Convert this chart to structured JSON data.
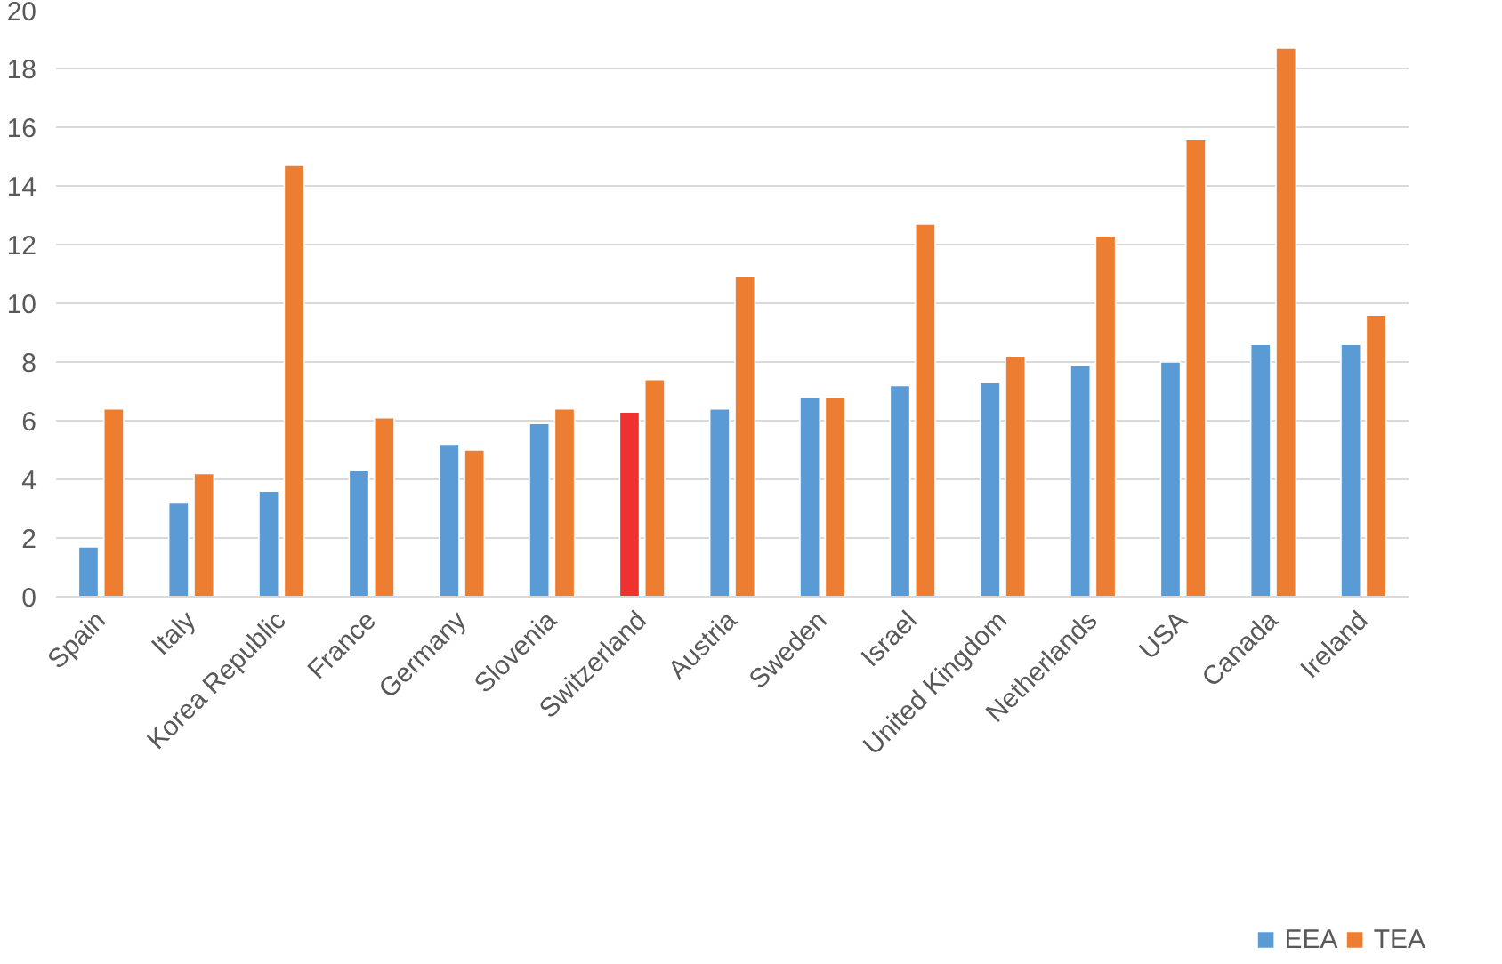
{
  "chart_data": {
    "type": "bar",
    "categories": [
      "Spain",
      "Italy",
      "Korea Republic",
      "France",
      "Germany",
      "Slovenia",
      "Switzerland",
      "Austria",
      "Sweden",
      "Israel",
      "United Kingdom",
      "Netherlands",
      "USA",
      "Canada",
      "Ireland"
    ],
    "series": [
      {
        "name": "EEA",
        "color": "#5b9bd5",
        "colors": [
          "#5b9bd5",
          "#5b9bd5",
          "#5b9bd5",
          "#5b9bd5",
          "#5b9bd5",
          "#5b9bd5",
          "#ee3131",
          "#5b9bd5",
          "#5b9bd5",
          "#5b9bd5",
          "#5b9bd5",
          "#5b9bd5",
          "#5b9bd5",
          "#5b9bd5",
          "#5b9bd5"
        ],
        "values": [
          1.7,
          3.2,
          3.6,
          4.3,
          5.2,
          5.9,
          6.3,
          6.4,
          6.8,
          7.2,
          7.3,
          7.9,
          8.0,
          8.6,
          8.6
        ]
      },
      {
        "name": "TEA",
        "color": "#ed7d31",
        "values": [
          6.4,
          4.2,
          14.7,
          6.1,
          5.0,
          6.4,
          7.4,
          10.9,
          6.8,
          12.7,
          8.2,
          12.3,
          15.6,
          18.7,
          9.6
        ]
      }
    ],
    "ylim": [
      0,
      20
    ],
    "yticks": [
      0,
      2,
      4,
      6,
      8,
      10,
      12,
      14,
      16,
      18,
      20
    ],
    "grid": "y",
    "legend": "bottom"
  }
}
